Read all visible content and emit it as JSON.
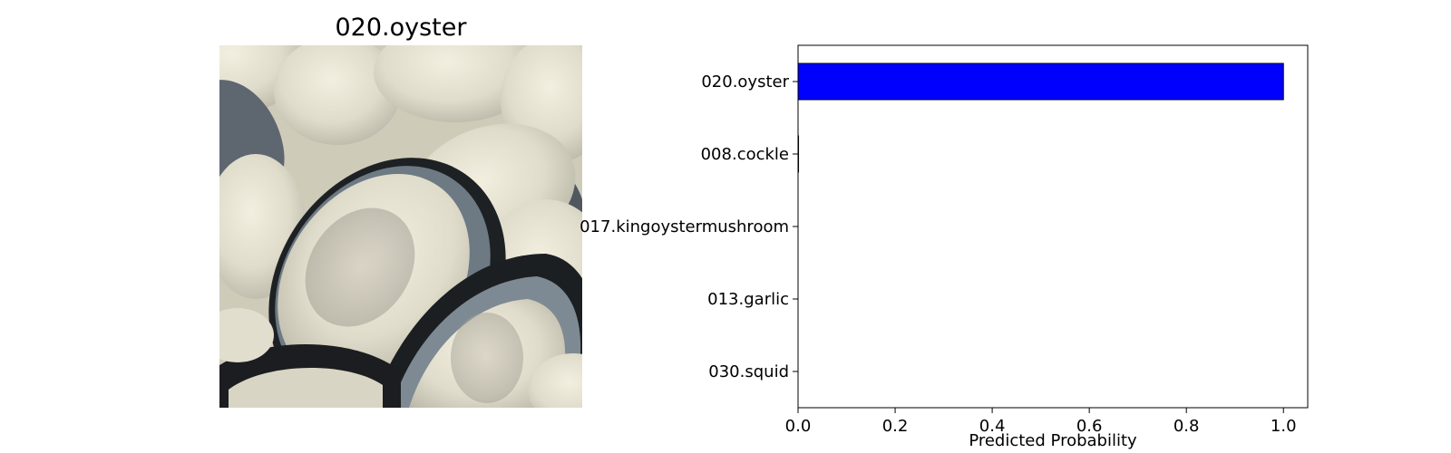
{
  "image_panel": {
    "title": "020.oyster",
    "photo_subject": "oysters"
  },
  "chart_data": {
    "type": "bar",
    "orientation": "horizontal",
    "categories": [
      "020.oyster",
      "008.cockle",
      "017.kingoystermushroom",
      "013.garlic",
      "030.squid"
    ],
    "values": [
      1.0,
      0.001,
      0.0,
      0.0,
      0.0
    ],
    "xlabel": "Predicted Probability",
    "ylabel": "",
    "xlim": [
      0,
      1.05
    ],
    "xticks": [
      0.0,
      0.2,
      0.4,
      0.6,
      0.8,
      1.0
    ],
    "xtick_labels": [
      "0.0",
      "0.2",
      "0.4",
      "0.6",
      "0.8",
      "1.0"
    ],
    "bar_color": "#0000ff",
    "bar_edge_color": "#000000",
    "grid": false
  }
}
